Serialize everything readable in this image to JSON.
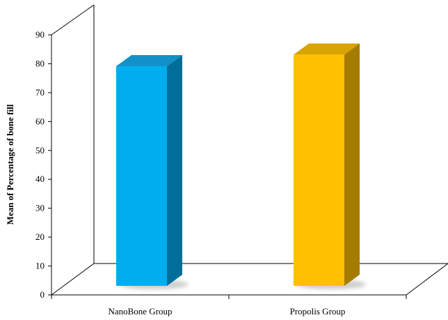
{
  "chart_data": {
    "type": "bar",
    "style": "3d",
    "categories": [
      "NanoBone Group",
      "Propolis Group"
    ],
    "values": [
      83,
      87
    ],
    "ylabel": "Mean of Percentage of bone fill",
    "xlabel": "",
    "ylim": [
      0,
      90
    ],
    "yticks": [
      "0",
      "10",
      "20",
      "30",
      "40",
      "50",
      "60",
      "70",
      "80",
      "90"
    ],
    "grid": false,
    "legend": "none",
    "colors": {
      "bars": [
        {
          "front": "#00AEEF",
          "side": "#006E9A",
          "top": "#1291C8"
        },
        {
          "front": "#FFC000",
          "side": "#A67C00",
          "top": "#D9A300"
        }
      ],
      "axis": "#000000",
      "shadow": "#cfcfcf"
    }
  }
}
